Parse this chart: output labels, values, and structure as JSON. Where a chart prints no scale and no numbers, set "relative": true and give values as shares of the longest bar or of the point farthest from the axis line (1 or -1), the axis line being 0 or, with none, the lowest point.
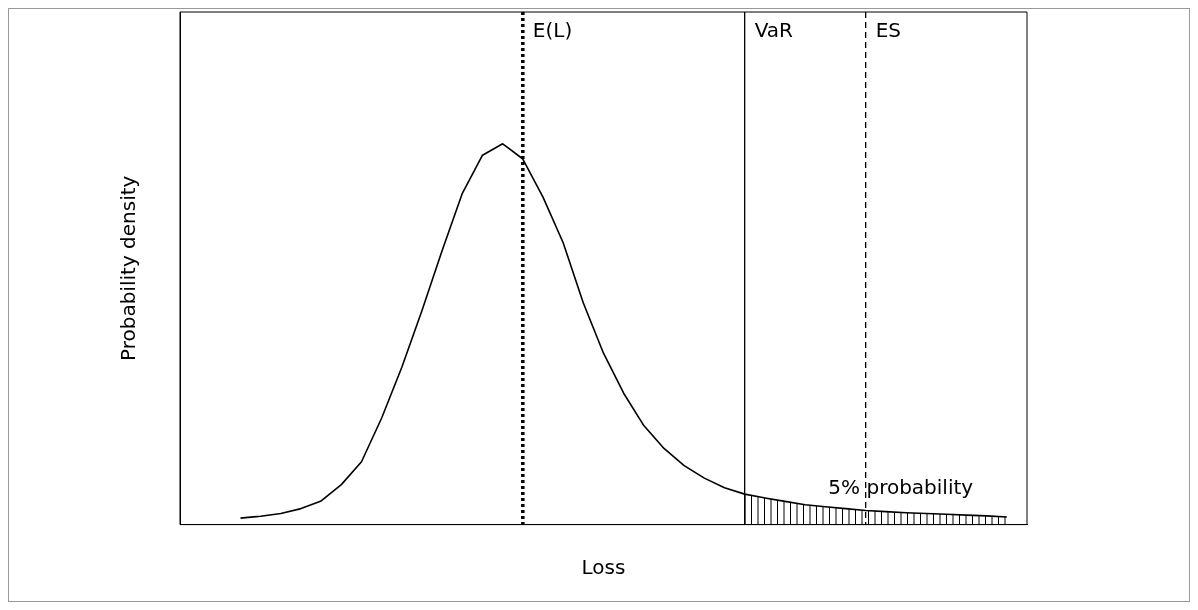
{
  "chart_data": {
    "type": "line",
    "relative": true,
    "xlabel": "Loss",
    "ylabel": "Probability density",
    "grid": false,
    "legend": false,
    "marker": "none",
    "categories": [
      null,
      null,
      null,
      null,
      null,
      null,
      null,
      null,
      null,
      null,
      null,
      null,
      null,
      null,
      null,
      null,
      null,
      null,
      null,
      null,
      null,
      null,
      null,
      null,
      null,
      null,
      null,
      null,
      null,
      null,
      null,
      null,
      null,
      null,
      null,
      null,
      null,
      null,
      null,
      null,
      null,
      null,
      null
    ],
    "series": [
      {
        "color": "#000000",
        "values": [
          null,
          null,
          null,
          0.017,
          0.022,
          0.029,
          0.042,
          0.062,
          0.105,
          0.165,
          0.28,
          0.413,
          0.562,
          0.72,
          0.87,
          0.97,
          1,
          0.96,
          0.86,
          0.74,
          0.582,
          0.45,
          0.345,
          0.26,
          0.2,
          0.155,
          0.122,
          0.097,
          0.08,
          0.07,
          0.061,
          0.052,
          0.047,
          0.042,
          0.037,
          0.034,
          0.031,
          0.029,
          0.027,
          0.025,
          0.023,
          0.02,
          null
        ]
      }
    ],
    "annotations": [
      "E(L)",
      "VaR",
      "ES",
      "5% probability"
    ]
  }
}
